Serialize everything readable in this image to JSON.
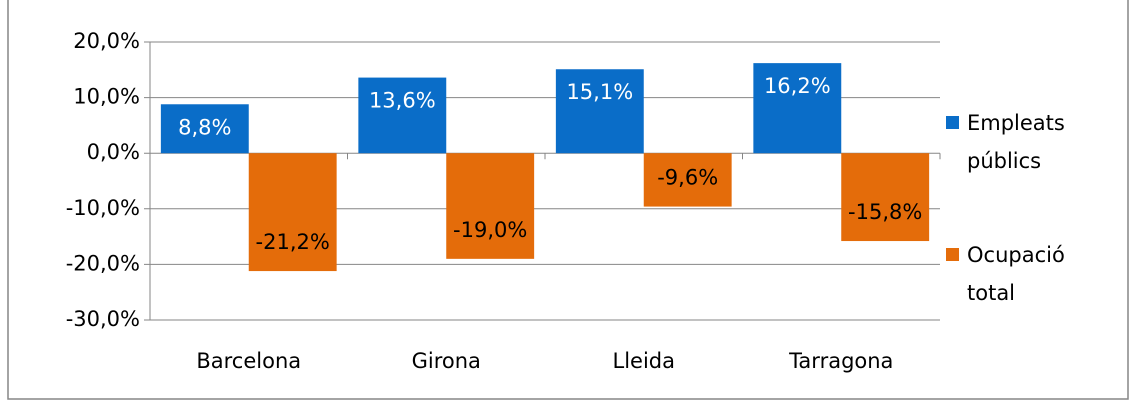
{
  "chart_data": {
    "type": "bar",
    "categories": [
      "Barcelona",
      "Girona",
      "Lleida",
      "Tarragona"
    ],
    "series": [
      {
        "name": "Empleats públics",
        "color": "#0a6dc8",
        "values": [
          8.8,
          13.6,
          15.1,
          16.2
        ],
        "value_labels": [
          "8,8%",
          "13,6%",
          "15,1%",
          "16,2%"
        ]
      },
      {
        "name": "Ocupació total",
        "color": "#e46c0a",
        "values": [
          -21.2,
          -19.0,
          -9.6,
          -15.8
        ],
        "value_labels": [
          "-21,2%",
          "-19,0%",
          "-9,6%",
          "-15,8%"
        ]
      }
    ],
    "ylim": [
      -30,
      20
    ],
    "yticks": [
      {
        "value": -30,
        "label": "-30,0%"
      },
      {
        "value": -20,
        "label": "-20,0%"
      },
      {
        "value": -10,
        "label": "-10,0%"
      },
      {
        "value": 0,
        "label": "0,0%"
      },
      {
        "value": 10,
        "label": "10,0%"
      },
      {
        "value": 20,
        "label": "20,0%"
      }
    ],
    "grid": true,
    "legend": "right"
  }
}
